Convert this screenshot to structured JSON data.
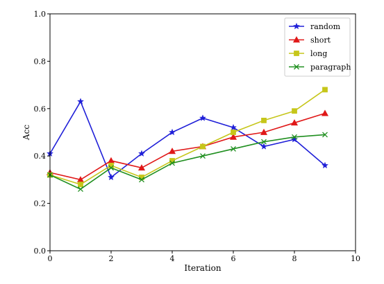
{
  "chart_data": {
    "type": "line",
    "title": "",
    "xlabel": "Iteration",
    "ylabel": "Acc",
    "xlim": [
      0,
      10
    ],
    "ylim": [
      0.0,
      1.0
    ],
    "xticks": [
      0,
      2,
      4,
      6,
      8,
      10
    ],
    "xtick_labels": [
      "0",
      "2",
      "4",
      "6",
      "8",
      "10"
    ],
    "yticks": [
      0.0,
      0.2,
      0.4,
      0.6,
      0.8,
      1.0
    ],
    "ytick_labels": [
      "0.0",
      "0.2",
      "0.4",
      "0.6",
      "0.8",
      "1.0"
    ],
    "grid": false,
    "legend_position": "top-right",
    "x": [
      0,
      1,
      2,
      3,
      4,
      5,
      6,
      7,
      8,
      9
    ],
    "series": [
      {
        "name": "random",
        "color": "#1f1fd8",
        "marker": "star",
        "values": [
          0.41,
          0.63,
          0.31,
          0.41,
          0.5,
          0.56,
          0.52,
          0.44,
          0.47,
          0.36
        ]
      },
      {
        "name": "short",
        "color": "#e01818",
        "marker": "triangle",
        "values": [
          0.33,
          0.3,
          0.38,
          0.35,
          0.42,
          0.44,
          0.48,
          0.5,
          0.54,
          0.58
        ]
      },
      {
        "name": "long",
        "color": "#c6c61a",
        "marker": "square",
        "values": [
          0.32,
          0.28,
          0.36,
          0.31,
          0.38,
          0.44,
          0.5,
          0.55,
          0.59,
          0.68
        ]
      },
      {
        "name": "paragraph",
        "color": "#1f8f1f",
        "marker": "x",
        "values": [
          0.32,
          0.26,
          0.35,
          0.3,
          0.37,
          0.4,
          0.43,
          0.46,
          0.48,
          0.49
        ]
      }
    ]
  }
}
